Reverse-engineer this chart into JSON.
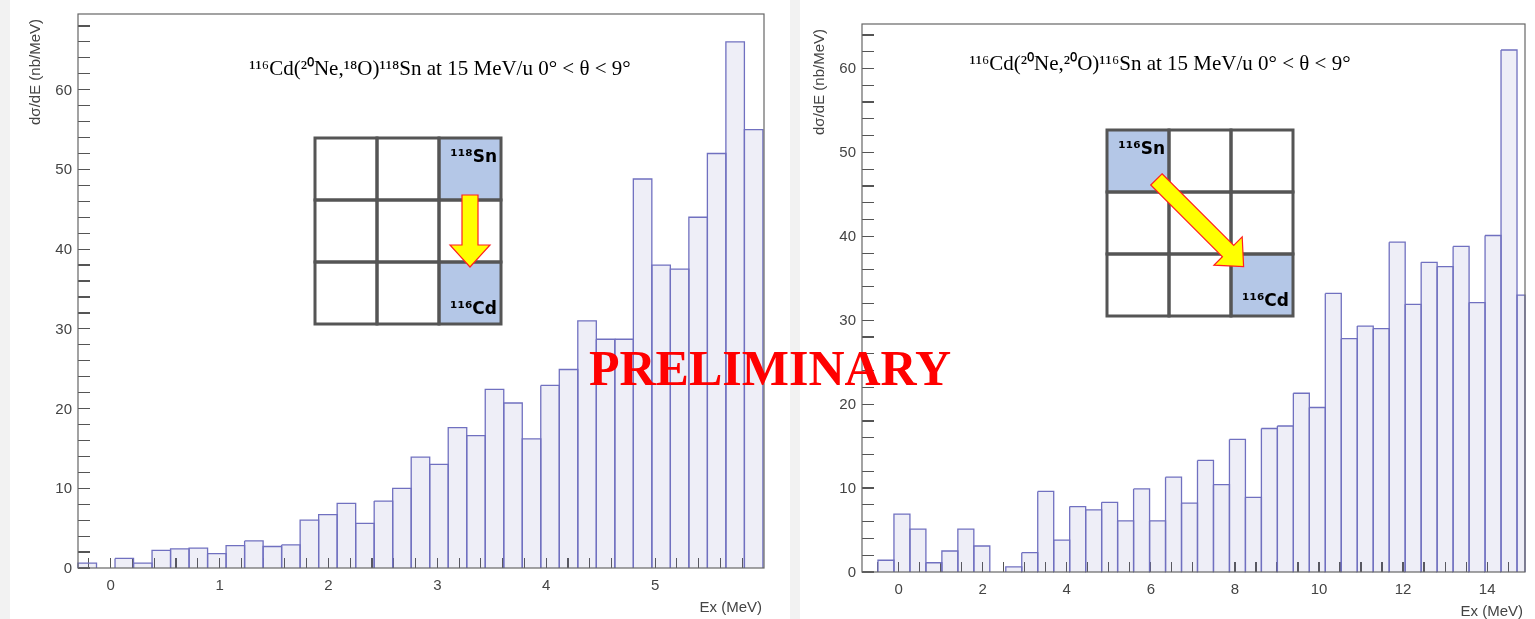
{
  "chart_data": [
    {
      "type": "histogram",
      "title": "¹¹⁶Cd(²⁰Ne,¹⁸O)¹¹⁸Sn at 15 MeV/u 0° < θ < 9°",
      "xlabel": "Ex (MeV)",
      "ylabel": "dσ/dE (nb/MeV)",
      "color": "#7070c0",
      "annotations": [
        "¹¹⁸Sn",
        "¹¹⁶Cd",
        "PRELIMINARY"
      ],
      "bins": [
        -0.3,
        -0.13,
        0.04,
        0.21,
        0.38,
        0.55,
        0.72,
        0.89,
        1.06,
        1.23,
        1.4,
        1.57,
        1.74,
        1.91,
        2.08,
        2.25,
        2.42,
        2.59,
        2.76,
        2.93,
        3.1,
        3.27,
        3.44,
        3.61,
        3.78,
        3.95,
        4.12,
        4.29,
        4.46,
        4.63,
        4.8,
        4.97,
        5.14,
        5.31,
        5.48,
        5.65,
        5.82,
        5.99
      ],
      "values": [
        0.6,
        0,
        1.2,
        0.6,
        2.2,
        2.4,
        2.5,
        1.8,
        2.8,
        3.4,
        2.7,
        2.9,
        6,
        6.7,
        8.1,
        5.6,
        8.4,
        10,
        13.9,
        13,
        17.6,
        16.6,
        22.4,
        20.7,
        16.2,
        22.9,
        24.9,
        31,
        28.7,
        28.7,
        48.8,
        38,
        37.5,
        44,
        52,
        66,
        55
      ],
      "xlim": [
        -0.3,
        6.0
      ],
      "ylim": [
        0,
        69.5
      ],
      "xticks": [
        {
          "value": -0.2,
          "label": null
        },
        0,
        {
          "value": 0.2,
          "label": null
        },
        {
          "value": 0.4,
          "label": null
        },
        {
          "value": 0.6,
          "label": null
        },
        {
          "value": 0.8,
          "label": null
        },
        1,
        {
          "value": 1.2,
          "label": null
        },
        {
          "value": 1.4,
          "label": null
        },
        {
          "value": 1.6,
          "label": null
        },
        {
          "value": 1.8,
          "label": null
        },
        2,
        {
          "value": 2.2,
          "label": null
        },
        {
          "value": 2.4,
          "label": null
        },
        {
          "value": 2.6,
          "label": null
        },
        {
          "value": 2.8,
          "label": null
        },
        3,
        {
          "value": 3.2,
          "label": null
        },
        {
          "value": 3.4,
          "label": null
        },
        {
          "value": 3.6,
          "label": null
        },
        {
          "value": 3.8,
          "label": null
        },
        4,
        {
          "value": 4.2,
          "label": null
        },
        {
          "value": 4.4,
          "label": null
        },
        {
          "value": 4.6,
          "label": null
        },
        {
          "value": 4.8,
          "label": null
        },
        5,
        {
          "value": 5.2,
          "label": null
        },
        {
          "value": 5.4,
          "label": null
        },
        {
          "value": 5.6,
          "label": null
        },
        {
          "value": 5.8,
          "label": null
        }
      ],
      "yticks": [
        0,
        {
          "value": 2,
          "label": null
        },
        {
          "value": 4,
          "label": null
        },
        {
          "value": 6,
          "label": null
        },
        {
          "value": 8,
          "label": null
        },
        10,
        {
          "value": 12,
          "label": null
        },
        {
          "value": 14,
          "label": null
        },
        {
          "value": 16,
          "label": null
        },
        {
          "value": 18,
          "label": null
        },
        20,
        {
          "value": 22,
          "label": null
        },
        {
          "value": 24,
          "label": null
        },
        {
          "value": 26,
          "label": null
        },
        {
          "value": 28,
          "label": null
        },
        30,
        {
          "value": 32,
          "label": null
        },
        {
          "value": 34,
          "label": null
        },
        {
          "value": 36,
          "label": null
        },
        {
          "value": 38,
          "label": null
        },
        40,
        {
          "value": 42,
          "label": null
        },
        {
          "value": 44,
          "label": null
        },
        {
          "value": 46,
          "label": null
        },
        {
          "value": 48,
          "label": null
        },
        50,
        {
          "value": 52,
          "label": null
        },
        {
          "value": 54,
          "label": null
        },
        {
          "value": 56,
          "label": null
        },
        {
          "value": 58,
          "label": null
        },
        60,
        {
          "value": 62,
          "label": null
        },
        {
          "value": 64,
          "label": null
        },
        {
          "value": 66,
          "label": null
        },
        {
          "value": 68,
          "label": null
        }
      ]
    },
    {
      "type": "histogram",
      "title": "¹¹⁶Cd(²⁰Ne,²⁰O)¹¹⁶Sn at 15 MeV/u 0° < θ < 9°",
      "xlabel": "Ex (MeV)",
      "ylabel": "dσ/dE (nb/MeV)",
      "color": "#7070c0",
      "annotations": [
        "¹¹⁶Sn",
        "¹¹⁶Cd"
      ],
      "bins": [
        -0.49,
        -0.11,
        0.27,
        0.65,
        1.03,
        1.41,
        1.79,
        2.17,
        2.55,
        2.93,
        3.31,
        3.69,
        4.07,
        4.45,
        4.83,
        5.21,
        5.59,
        5.97,
        6.35,
        6.73,
        7.11,
        7.49,
        7.87,
        8.25,
        8.63,
        9.01,
        9.39,
        9.77,
        10.15,
        10.53,
        10.91,
        11.29,
        11.67,
        12.05,
        12.43,
        12.81,
        13.19,
        13.57,
        13.95,
        14.33,
        14.71,
        14.9
      ],
      "values": [
        1.4,
        6.9,
        5.1,
        1.1,
        2.5,
        5.1,
        3.1,
        0,
        0.6,
        2.3,
        9.6,
        3.8,
        7.8,
        7.4,
        8.3,
        6.1,
        9.9,
        6.1,
        11.3,
        8.2,
        13.3,
        10.4,
        15.8,
        8.9,
        17.1,
        17.4,
        21.3,
        19.6,
        33.2,
        27.8,
        29.3,
        29,
        39.3,
        31.9,
        36.9,
        36.4,
        38.8,
        32.1,
        40.1,
        62.2,
        33
      ],
      "xlim": [
        -0.87,
        14.9
      ],
      "ylim": [
        0,
        65.3
      ],
      "xticks": [
        {
          "value": -0.5,
          "label": null
        },
        0,
        {
          "value": 0.5,
          "label": null
        },
        {
          "value": 1,
          "label": null
        },
        {
          "value": 1.5,
          "label": null
        },
        2,
        {
          "value": 2.5,
          "label": null
        },
        {
          "value": 3,
          "label": null
        },
        {
          "value": 3.5,
          "label": null
        },
        4,
        {
          "value": 4.5,
          "label": null
        },
        {
          "value": 5,
          "label": null
        },
        {
          "value": 5.5,
          "label": null
        },
        6,
        {
          "value": 6.5,
          "label": null
        },
        {
          "value": 7,
          "label": null
        },
        {
          "value": 7.5,
          "label": null
        },
        8,
        {
          "value": 8.5,
          "label": null
        },
        {
          "value": 9,
          "label": null
        },
        {
          "value": 9.5,
          "label": null
        },
        10,
        {
          "value": 10.5,
          "label": null
        },
        {
          "value": 11,
          "label": null
        },
        {
          "value": 11.5,
          "label": null
        },
        12,
        {
          "value": 12.5,
          "label": null
        },
        {
          "value": 13,
          "label": null
        },
        {
          "value": 13.5,
          "label": null
        },
        14,
        {
          "value": 14.5,
          "label": null
        }
      ],
      "yticks": [
        0,
        {
          "value": 2,
          "label": null
        },
        {
          "value": 4,
          "label": null
        },
        {
          "value": 6,
          "label": null
        },
        {
          "value": 8,
          "label": null
        },
        10,
        {
          "value": 12,
          "label": null
        },
        {
          "value": 14,
          "label": null
        },
        {
          "value": 16,
          "label": null
        },
        {
          "value": 18,
          "label": null
        },
        20,
        {
          "value": 22,
          "label": null
        },
        {
          "value": 24,
          "label": null
        },
        {
          "value": 26,
          "label": null
        },
        {
          "value": 28,
          "label": null
        },
        30,
        {
          "value": 32,
          "label": null
        },
        {
          "value": 34,
          "label": null
        },
        {
          "value": 36,
          "label": null
        },
        {
          "value": 38,
          "label": null
        },
        40,
        {
          "value": 42,
          "label": null
        },
        {
          "value": 44,
          "label": null
        },
        {
          "value": 46,
          "label": null
        },
        {
          "value": 48,
          "label": null
        },
        50,
        {
          "value": 52,
          "label": null
        },
        {
          "value": 54,
          "label": null
        },
        {
          "value": 56,
          "label": null
        },
        {
          "value": 58,
          "label": null
        },
        60,
        {
          "value": 62,
          "label": null
        },
        {
          "value": 64,
          "label": null
        }
      ]
    }
  ]
}
